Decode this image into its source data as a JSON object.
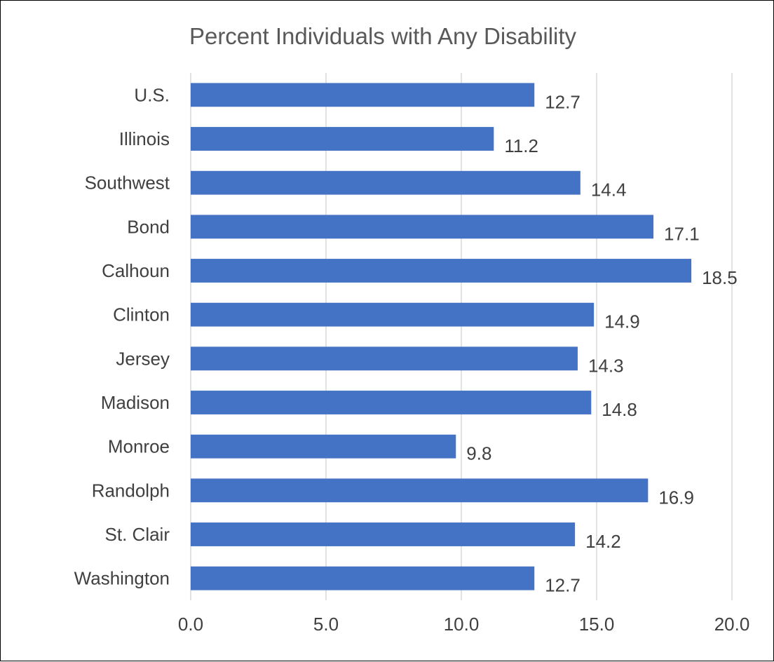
{
  "chart_data": {
    "type": "bar",
    "orientation": "horizontal",
    "title": "Percent Individuals with Any Disability",
    "xlabel": "",
    "ylabel": "",
    "categories": [
      "U.S.",
      "Illinois",
      "Southwest",
      "Bond",
      "Calhoun",
      "Clinton",
      "Jersey",
      "Madison",
      "Monroe",
      "Randolph",
      "St. Clair",
      "Washington"
    ],
    "values": [
      12.7,
      11.2,
      14.4,
      17.1,
      18.5,
      14.9,
      14.3,
      14.8,
      9.8,
      16.9,
      14.2,
      12.7
    ],
    "value_labels": [
      "12.7",
      "11.2",
      "14.4",
      "17.1",
      "18.5",
      "14.9",
      "14.3",
      "14.8",
      "9.8",
      "16.9",
      "14.2",
      "12.7"
    ],
    "xlim": [
      0,
      20
    ],
    "xticks": [
      0,
      5,
      10,
      15,
      20
    ],
    "xtick_labels": [
      "0.0",
      "5.0",
      "10.0",
      "15.0",
      "20.0"
    ],
    "grid": "vertical",
    "legend": "none",
    "bar_color": "#4472C4"
  }
}
